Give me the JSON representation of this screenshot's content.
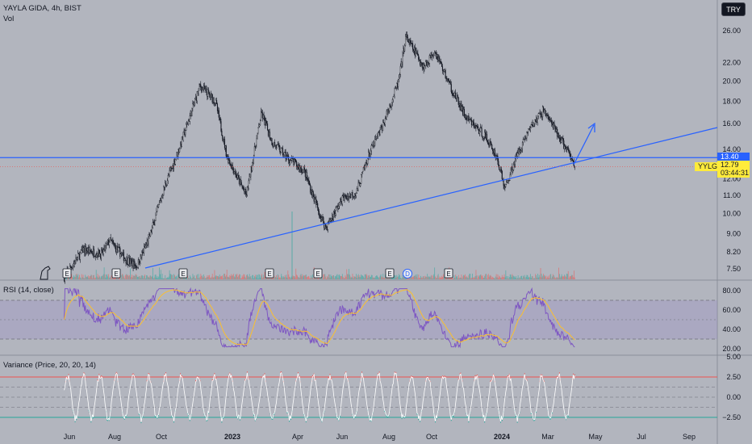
{
  "header": {
    "symbol": "YAYLA GIDA, 4h, BIST",
    "volume_label": "Vol",
    "currency_button": "TRY"
  },
  "price_tags": {
    "line_level": "13.40",
    "ticker": "YYLGD",
    "last_price": "12.79",
    "countdown": "03:44:31"
  },
  "events": {
    "earnings_label": "E",
    "dividend_label": "D"
  },
  "colors": {
    "background": "#b2b5be",
    "trendline": "#2962ff",
    "candle": "#131722",
    "volume_up": "#26a69a",
    "volume_down": "#ef5350",
    "rsi_line": "#7e57c2",
    "rsi_ma": "#fbc02d",
    "variance_white": "#ffffff",
    "variance_red": "#ef5350",
    "variance_green": "#26a69a",
    "price_tag_bg": "#ffeb3b"
  },
  "chart_data": [
    {
      "type": "candlestick",
      "title": "YAYLA GIDA, 4h, BIST",
      "y_scale": "log",
      "y_ticks": [
        "7.50",
        "8.20",
        "9.00",
        "10.00",
        "11.00",
        "12.00",
        "14.00",
        "16.00",
        "18.00",
        "20.00",
        "22.00",
        "26.00"
      ],
      "x_ticks": [
        "Jun",
        "Aug",
        "Oct",
        "2023",
        "Apr",
        "Jun",
        "Aug",
        "Oct",
        "2024",
        "Mar",
        "May",
        "Jul",
        "Sep"
      ],
      "approx_close_path": [
        {
          "date": "2022-05-25",
          "close": 7.2
        },
        {
          "date": "2022-06-20",
          "close": 8.3
        },
        {
          "date": "2022-07-15",
          "close": 8.1
        },
        {
          "date": "2022-07-25",
          "close": 8.7
        },
        {
          "date": "2022-08-15",
          "close": 7.9
        },
        {
          "date": "2022-08-30",
          "close": 7.6
        },
        {
          "date": "2022-09-15",
          "close": 8.8
        },
        {
          "date": "2022-10-05",
          "close": 11.5
        },
        {
          "date": "2022-10-25",
          "close": 14.2
        },
        {
          "date": "2022-11-20",
          "close": 19.5
        },
        {
          "date": "2022-12-10",
          "close": 18.0
        },
        {
          "date": "2022-12-25",
          "close": 13.5
        },
        {
          "date": "2023-01-20",
          "close": 11.0
        },
        {
          "date": "2023-02-10",
          "close": 16.9
        },
        {
          "date": "2023-02-25",
          "close": 14.5
        },
        {
          "date": "2023-03-20",
          "close": 13.3
        },
        {
          "date": "2023-04-10",
          "close": 12.5
        },
        {
          "date": "2023-05-01",
          "close": 10.0
        },
        {
          "date": "2023-05-10",
          "close": 9.3
        },
        {
          "date": "2023-06-01",
          "close": 10.8
        },
        {
          "date": "2023-06-20",
          "close": 11.2
        },
        {
          "date": "2023-07-05",
          "close": 13.5
        },
        {
          "date": "2023-07-25",
          "close": 16.0
        },
        {
          "date": "2023-08-15",
          "close": 20.0
        },
        {
          "date": "2023-08-25",
          "close": 25.2
        },
        {
          "date": "2023-09-20",
          "close": 21.5
        },
        {
          "date": "2023-10-05",
          "close": 23.5
        },
        {
          "date": "2023-10-25",
          "close": 19.5
        },
        {
          "date": "2023-11-15",
          "close": 16.5
        },
        {
          "date": "2023-12-10",
          "close": 15.0
        },
        {
          "date": "2023-12-25",
          "close": 13.5
        },
        {
          "date": "2024-01-05",
          "close": 11.4
        },
        {
          "date": "2024-01-20",
          "close": 13.5
        },
        {
          "date": "2024-02-05",
          "close": 15.5
        },
        {
          "date": "2024-02-25",
          "close": 17.2
        },
        {
          "date": "2024-03-10",
          "close": 15.5
        },
        {
          "date": "2024-03-25",
          "close": 14.0
        },
        {
          "date": "2024-04-05",
          "close": 12.79
        }
      ],
      "horizontal_line": 13.4,
      "last_price": 12.79
    },
    {
      "type": "line",
      "title": "RSI (14, close)",
      "y_ticks": [
        "20.00",
        "40.00",
        "60.00",
        "80.00"
      ],
      "bands": [
        30,
        70
      ]
    },
    {
      "type": "line",
      "title": "Variance (Price, 20, 20, 14)",
      "y_ticks": [
        "−2.50",
        "0.00",
        "2.50",
        "5.00"
      ],
      "bands": [
        -2.5,
        2.5
      ]
    }
  ]
}
